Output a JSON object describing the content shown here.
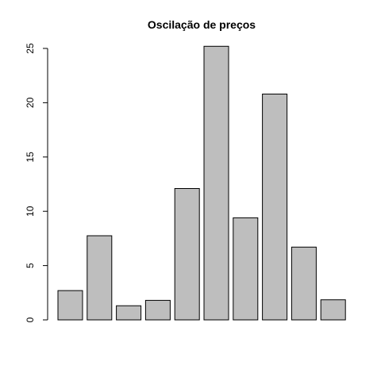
{
  "chart_data": {
    "type": "bar",
    "title": "Oscilação de preços",
    "xlabel": "",
    "ylabel": "",
    "values": [
      2.7,
      7.75,
      1.3,
      1.8,
      12.1,
      25.2,
      9.4,
      20.8,
      6.7,
      1.85
    ],
    "ylim": [
      0,
      25
    ],
    "yticks": [
      "0",
      "5",
      "10",
      "15",
      "20",
      "25"
    ],
    "bar_color": "#bebebe",
    "grid": false,
    "legend": "none"
  }
}
